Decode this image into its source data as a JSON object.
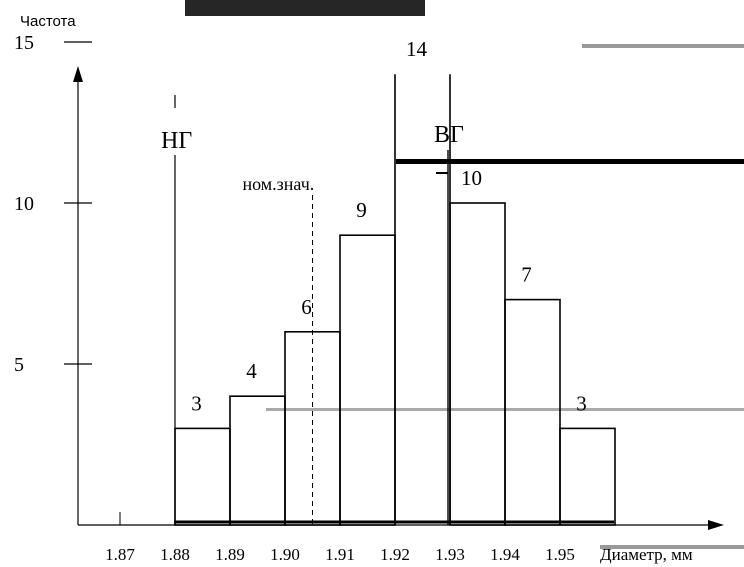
{
  "chart_data": {
    "type": "bar",
    "title": "",
    "ylabel": "Частота",
    "xlabel": "Диаметр, мм",
    "ylim": [
      0,
      15
    ],
    "y_ticks": [
      5,
      10,
      15
    ],
    "x_ticks": [
      "1.87",
      "1.88",
      "1.89",
      "1.90",
      "1.91",
      "1.92",
      "1.93",
      "1.94",
      "1.95"
    ],
    "bins": [
      {
        "from": 1.88,
        "to": 1.89,
        "value": 3
      },
      {
        "from": 1.89,
        "to": 1.9,
        "value": 4
      },
      {
        "from": 1.9,
        "to": 1.91,
        "value": 6
      },
      {
        "from": 1.91,
        "to": 1.92,
        "value": 9
      },
      {
        "from": 1.92,
        "to": 1.93,
        "value": 14
      },
      {
        "from": 1.93,
        "to": 1.94,
        "value": 10
      },
      {
        "from": 1.94,
        "to": 1.95,
        "value": 7
      },
      {
        "from": 1.95,
        "to": 1.96,
        "value": 3
      }
    ],
    "annotations": [
      {
        "text": "НГ",
        "x": 1.88,
        "style": "solid-line"
      },
      {
        "text": "ВГ",
        "x": 1.93,
        "style": "solid-line"
      },
      {
        "text": "ном.знач.",
        "x": 1.905,
        "style": "dashed-line"
      }
    ],
    "grid": false,
    "legend": "none"
  }
}
